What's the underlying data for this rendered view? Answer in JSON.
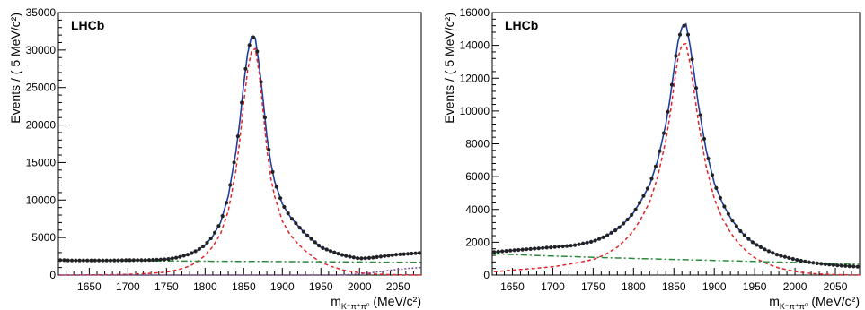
{
  "chart_data": [
    {
      "type": "line",
      "label": "LHCb",
      "ylabel": "Events / ( 5 MeV/c²)",
      "xlabel": "m_{K⁻π⁺π⁰} (MeV/c²)",
      "xlabel_main": "m",
      "xlabel_sub": "K⁻π⁺π⁰",
      "xlabel_unit": " (MeV/c²)",
      "xlim": [
        1610,
        2080
      ],
      "ylim": [
        0,
        35000
      ],
      "xticks": [
        "1650",
        "1700",
        "1750",
        "1800",
        "1850",
        "1900",
        "1950",
        "2000",
        "2050"
      ],
      "yticks": [
        "0",
        "5000",
        "10000",
        "15000",
        "20000",
        "25000",
        "30000",
        "35000"
      ],
      "x": [
        1612,
        1625,
        1650,
        1675,
        1700,
        1725,
        1750,
        1765,
        1780,
        1790,
        1800,
        1810,
        1820,
        1830,
        1840,
        1845,
        1850,
        1855,
        1860,
        1865,
        1870,
        1875,
        1880,
        1885,
        1890,
        1900,
        1910,
        1920,
        1930,
        1940,
        1950,
        1965,
        1980,
        2000,
        2015,
        2030,
        2050,
        2065,
        2080
      ],
      "series": [
        {
          "name": "",
          "role": "data points",
          "color": "#222222",
          "y": [
            2000,
            1950,
            1950,
            1950,
            1980,
            2000,
            2100,
            2350,
            2800,
            3300,
            4000,
            5200,
            7000,
            10500,
            16500,
            20500,
            25500,
            29500,
            31800,
            31600,
            28000,
            23500,
            18500,
            15000,
            12500,
            9500,
            7800,
            6600,
            5500,
            4600,
            3700,
            3100,
            2600,
            2200,
            2300,
            2500,
            2750,
            2850,
            2950
          ]
        },
        {
          "name": "",
          "role": "total fit",
          "color": "#1f3f9f",
          "y": [
            2000,
            1950,
            1950,
            1950,
            1980,
            2000,
            2100,
            2350,
            2800,
            3300,
            4000,
            5200,
            7000,
            10500,
            16500,
            20500,
            25500,
            29500,
            31800,
            31600,
            28000,
            23500,
            18500,
            15000,
            12500,
            9500,
            7800,
            6600,
            5500,
            4600,
            3700,
            3100,
            2600,
            2200,
            2300,
            2500,
            2750,
            2850,
            2950
          ]
        },
        {
          "name": "",
          "role": "signal",
          "color": "#e0262b",
          "y": [
            0,
            0,
            20,
            50,
            100,
            200,
            400,
            700,
            1200,
            1800,
            2600,
            3800,
            5500,
            8500,
            14000,
            18000,
            23000,
            27200,
            29800,
            30200,
            27000,
            22000,
            16800,
            13000,
            10500,
            7200,
            5400,
            4200,
            3200,
            2400,
            1700,
            1100,
            650,
            300,
            150,
            80,
            40,
            20,
            10
          ]
        },
        {
          "name": "",
          "role": "background",
          "color": "#2a8a3a",
          "y": [
            1950,
            1940,
            1920,
            1910,
            1900,
            1890,
            1880,
            1870,
            1860,
            1855,
            1850,
            1845,
            1840,
            1835,
            1830,
            1828,
            1825,
            1823,
            1820,
            1818,
            1815,
            1813,
            1810,
            1808,
            1805,
            1800,
            1795,
            1790,
            1785,
            1780,
            1775,
            1765,
            1755,
            1745,
            1735,
            1725,
            1715,
            1705,
            1700
          ]
        },
        {
          "name": "",
          "role": "other component",
          "color": "#7a4a9a",
          "y": [
            0,
            0,
            0,
            0,
            0,
            0,
            0,
            0,
            0,
            0,
            0,
            0,
            0,
            0,
            0,
            0,
            0,
            0,
            0,
            0,
            0,
            0,
            0,
            0,
            0,
            0,
            0,
            0,
            0,
            0,
            0,
            0,
            30,
            150,
            300,
            500,
            750,
            900,
            1000
          ]
        }
      ]
    },
    {
      "type": "line",
      "label": "LHCb",
      "ylabel": "Events / ( 5 MeV/c²)",
      "xlabel": "m_{K⁻π⁺π⁰} (MeV/c²)",
      "xlabel_main": "m",
      "xlabel_sub": "K⁻π⁺π⁰",
      "xlabel_unit": " (MeV/c²)",
      "xlim": [
        1625,
        2080
      ],
      "ylim": [
        0,
        16000
      ],
      "xticks": [
        "1650",
        "1700",
        "1750",
        "1800",
        "1850",
        "1900",
        "1950",
        "2000",
        "2050"
      ],
      "yticks": [
        "0",
        "2000",
        "4000",
        "6000",
        "8000",
        "10000",
        "12000",
        "14000",
        "16000"
      ],
      "x": [
        1627,
        1650,
        1675,
        1700,
        1725,
        1750,
        1765,
        1780,
        1790,
        1800,
        1810,
        1820,
        1830,
        1840,
        1845,
        1850,
        1855,
        1860,
        1865,
        1870,
        1875,
        1880,
        1885,
        1890,
        1900,
        1910,
        1920,
        1930,
        1940,
        1950,
        1965,
        1980,
        2000,
        2015,
        2030,
        2050,
        2065,
        2080
      ],
      "series": [
        {
          "name": "",
          "role": "data points",
          "color": "#222222",
          "y": [
            1400,
            1500,
            1600,
            1700,
            1800,
            2050,
            2350,
            2800,
            3250,
            3800,
            4600,
            5500,
            7000,
            9200,
            10700,
            12500,
            14200,
            15100,
            15300,
            14000,
            12300,
            10500,
            9000,
            7600,
            5600,
            4400,
            3500,
            2800,
            2300,
            1900,
            1500,
            1200,
            950,
            800,
            700,
            600,
            550,
            500
          ]
        },
        {
          "name": "",
          "role": "total fit",
          "color": "#1f3f9f",
          "y": [
            1400,
            1500,
            1600,
            1700,
            1800,
            2050,
            2350,
            2800,
            3250,
            3800,
            4600,
            5500,
            7000,
            9200,
            10700,
            12500,
            14200,
            15100,
            15300,
            14000,
            12300,
            10500,
            9000,
            7600,
            5600,
            4400,
            3500,
            2800,
            2300,
            1900,
            1500,
            1200,
            950,
            800,
            700,
            600,
            550,
            500
          ]
        },
        {
          "name": "",
          "role": "signal",
          "color": "#e0262b",
          "y": [
            200,
            300,
            400,
            500,
            700,
            950,
            1250,
            1700,
            2150,
            2700,
            3500,
            4450,
            6000,
            8200,
            9700,
            11500,
            13200,
            14050,
            14100,
            12900,
            11200,
            9450,
            7950,
            6600,
            4650,
            3450,
            2600,
            1920,
            1450,
            1050,
            700,
            430,
            220,
            120,
            60,
            30,
            15,
            5
          ]
        },
        {
          "name": "",
          "role": "background",
          "color": "#2a8a3a",
          "y": [
            1300,
            1250,
            1200,
            1160,
            1120,
            1080,
            1060,
            1040,
            1030,
            1010,
            1000,
            990,
            980,
            960,
            955,
            950,
            945,
            940,
            935,
            930,
            920,
            915,
            910,
            905,
            890,
            880,
            870,
            855,
            840,
            830,
            810,
            790,
            770,
            750,
            730,
            700,
            680,
            660
          ]
        }
      ]
    }
  ]
}
